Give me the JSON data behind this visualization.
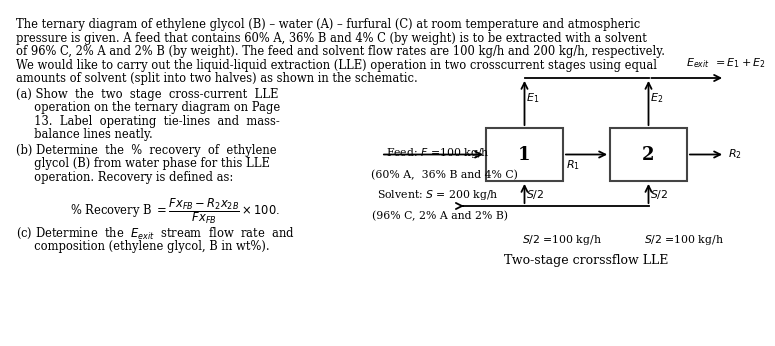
{
  "bg_color": "#ffffff",
  "text_color": "#000000",
  "fig_width": 7.46,
  "fig_height": 3.26,
  "main_text_lines": [
    "The ternary diagram of ethylene glycol (B) – water (A) – furfural (C) at room temperature and atmospheric",
    "pressure is given. A feed that contains 60% A, 36% B and 4% C (by weight) is to be extracted with a solvent",
    "of 96% C, 2% A and 2% B (by weight). The feed and solvent flow rates are 100 kg/h and 200 kg/h, respectively.",
    "We would like to carry out the liquid-liquid extraction (LLE) operation in two crosscurrent stages using equal",
    "amounts of solvent (split into two halves) as shown in the schematic."
  ],
  "part_a_lines": [
    "(a) Show  the  two  stage  cross-current  LLE",
    "     operation on the ternary diagram on Page",
    "     13.  Label  operating  tie-lines  and  mass-",
    "     balance lines neatly."
  ],
  "part_b_lines": [
    "(b) Determine  the  %  recovery  of  ethylene",
    "     glycol (B) from water phase for this LLE",
    "     operation. Recovery is defined as:"
  ],
  "part_c_lines": [
    "(c) Determine  the  $E_{exit}$  stream  flow  rate  and",
    "     composition (ethylene glycol, B in wt%)."
  ],
  "feed_label1": "Feed: $F$ =100 kg/h",
  "feed_label2": "(60% A,  36% B and 4% C)",
  "solvent_label1": "Solvent: $S$ = 200 kg/h",
  "solvent_label2": "(96% C, 2% A and 2% B)",
  "s2_eq1": "$S/2$ =100 kg/h",
  "s2_eq2": "$S/2$ =100 kg/h",
  "crossflow_label": "Two-stage crorssflow LLE",
  "E1_label": "$E_1$",
  "E2_label": "$E_2$",
  "Eexit_label": "$E_{exit}$",
  "Eeq_label": "$= E_1 + E_2$",
  "R1_label": "$R_1$",
  "R2_label": "$R_2$",
  "S2_bot1": "$S/2$",
  "S2_bot2": "$S/2$"
}
